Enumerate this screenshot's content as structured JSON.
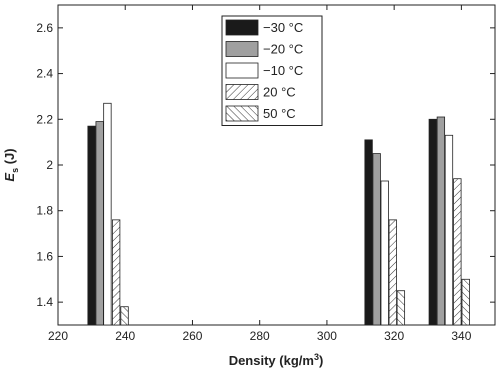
{
  "chart_data": {
    "type": "bar",
    "xlabel": [
      "Density (kg/m",
      "3",
      ")"
    ],
    "ylabel": [
      "E",
      "s",
      " (J)"
    ],
    "xlim": [
      220,
      350
    ],
    "xticks": [
      220,
      240,
      260,
      280,
      300,
      320,
      340
    ],
    "ylim": [
      1.3,
      2.7
    ],
    "yticks": [
      1.4,
      1.6,
      1.8,
      2.0,
      2.2,
      2.4,
      2.6
    ],
    "legend": "upper-center",
    "series": [
      {
        "name": "−30 °C",
        "color": "#1a1a1a",
        "hatch": "none",
        "x": [
          230,
          312.4,
          331.5
        ],
        "values": [
          2.17,
          2.11,
          2.2
        ]
      },
      {
        "name": "−20 °C",
        "color": "#a0a0a0",
        "hatch": "none",
        "x": [
          232.4,
          314.8,
          333.9
        ],
        "values": [
          2.19,
          2.05,
          2.21
        ]
      },
      {
        "name": "−10 °C",
        "color": "#ffffff",
        "hatch": "none",
        "x": [
          234.7,
          317.2,
          336.3
        ],
        "values": [
          2.27,
          1.93,
          2.13
        ]
      },
      {
        "name": "20 °C",
        "color": "#ffffff",
        "hatch": "forward",
        "x": [
          237.3,
          319.6,
          338.8
        ],
        "values": [
          1.76,
          1.76,
          1.94
        ]
      },
      {
        "name": "50 °C",
        "color": "#ffffff",
        "hatch": "backward",
        "x": [
          239.8,
          322,
          341.3
        ],
        "values": [
          1.38,
          1.45,
          1.5
        ]
      }
    ]
  }
}
